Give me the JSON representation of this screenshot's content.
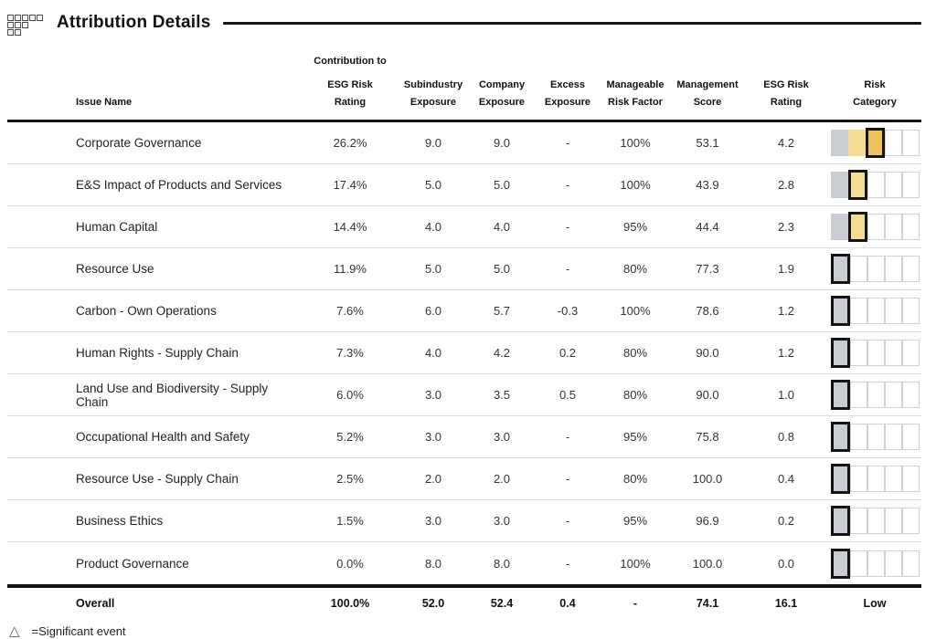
{
  "page": {
    "title": "Attribution Details"
  },
  "table": {
    "columns": {
      "issue": "Issue Name",
      "contribution": [
        "Contribution to",
        "ESG Risk",
        "Rating"
      ],
      "subindustry": [
        "Subindustry",
        "Exposure"
      ],
      "company": [
        "Company",
        "Exposure"
      ],
      "excess": [
        "Excess",
        "Exposure"
      ],
      "manageable": [
        "Manageable",
        "Risk Factor"
      ],
      "management": [
        "Management",
        "Score"
      ],
      "esg": [
        "ESG Risk",
        "Rating"
      ],
      "category": [
        "Risk",
        "Category"
      ]
    },
    "rows": [
      {
        "issue": "Corporate Governance",
        "contribution": "26.2%",
        "subindustry": "9.0",
        "company": "9.0",
        "excess": "-",
        "manageable": "100%",
        "management": "53.1",
        "esg": "4.2",
        "category_level": 3
      },
      {
        "issue": "E&S Impact of Products and Services",
        "contribution": "17.4%",
        "subindustry": "5.0",
        "company": "5.0",
        "excess": "-",
        "manageable": "100%",
        "management": "43.9",
        "esg": "2.8",
        "category_level": 2
      },
      {
        "issue": "Human Capital",
        "contribution": "14.4%",
        "subindustry": "4.0",
        "company": "4.0",
        "excess": "-",
        "manageable": "95%",
        "management": "44.4",
        "esg": "2.3",
        "category_level": 2
      },
      {
        "issue": "Resource Use",
        "contribution": "11.9%",
        "subindustry": "5.0",
        "company": "5.0",
        "excess": "-",
        "manageable": "80%",
        "management": "77.3",
        "esg": "1.9",
        "category_level": 1
      },
      {
        "issue": "Carbon - Own Operations",
        "contribution": "7.6%",
        "subindustry": "6.0",
        "company": "5.7",
        "excess": "-0.3",
        "manageable": "100%",
        "management": "78.6",
        "esg": "1.2",
        "category_level": 1
      },
      {
        "issue": "Human Rights - Supply Chain",
        "contribution": "7.3%",
        "subindustry": "4.0",
        "company": "4.2",
        "excess": "0.2",
        "manageable": "80%",
        "management": "90.0",
        "esg": "1.2",
        "category_level": 1
      },
      {
        "issue": "Land Use and Biodiversity - Supply Chain",
        "contribution": "6.0%",
        "subindustry": "3.0",
        "company": "3.5",
        "excess": "0.5",
        "manageable": "80%",
        "management": "90.0",
        "esg": "1.0",
        "category_level": 1
      },
      {
        "issue": "Occupational Health and Safety",
        "contribution": "5.2%",
        "subindustry": "3.0",
        "company": "3.0",
        "excess": "-",
        "manageable": "95%",
        "management": "75.8",
        "esg": "0.8",
        "category_level": 1
      },
      {
        "issue": "Resource Use - Supply Chain",
        "contribution": "2.5%",
        "subindustry": "2.0",
        "company": "2.0",
        "excess": "-",
        "manageable": "80%",
        "management": "100.0",
        "esg": "0.4",
        "category_level": 1
      },
      {
        "issue": "Business Ethics",
        "contribution": "1.5%",
        "subindustry": "3.0",
        "company": "3.0",
        "excess": "-",
        "manageable": "95%",
        "management": "96.9",
        "esg": "0.2",
        "category_level": 1
      },
      {
        "issue": "Product Governance",
        "contribution": "0.0%",
        "subindustry": "8.0",
        "company": "8.0",
        "excess": "-",
        "manageable": "100%",
        "management": "100.0",
        "esg": "0.0",
        "category_level": 1
      }
    ],
    "overall": {
      "label": "Overall",
      "contribution": "100.0%",
      "subindustry": "52.0",
      "company": "52.4",
      "excess": "0.4",
      "manageable": "-",
      "management": "74.1",
      "esg": "16.1",
      "category": "Low"
    }
  },
  "risk_scale": {
    "levels": 5,
    "level_colors": {
      "1": "#c9ccd1",
      "2": "#f6dc92",
      "3": "#eec25c"
    },
    "empty_color": "#ffffff"
  },
  "legend": {
    "symbol": "△",
    "text": "=Significant event"
  }
}
